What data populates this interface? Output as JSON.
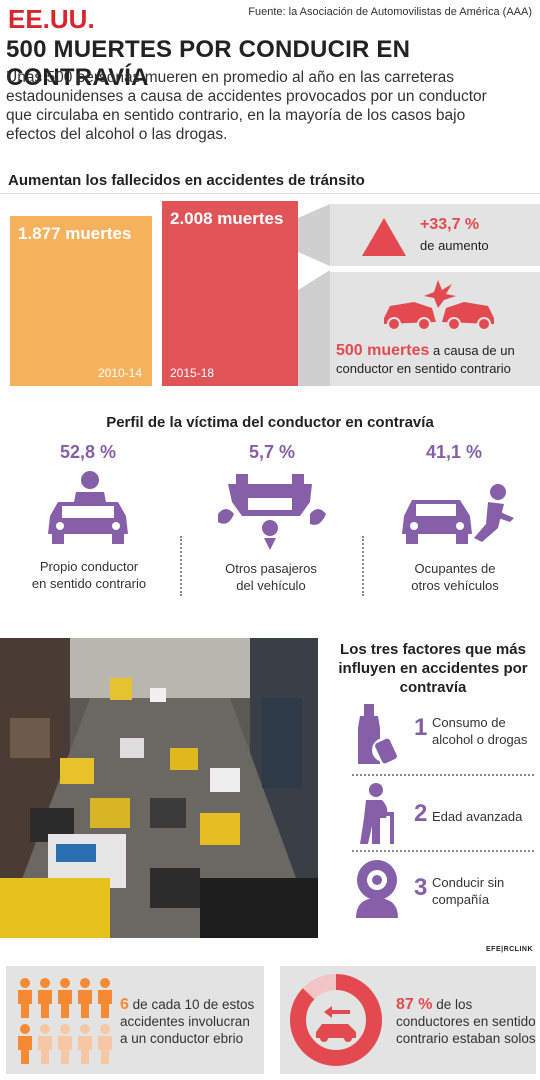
{
  "header": {
    "country_tag": "EE.UU.",
    "source": "Fuente: la Asociación de Automovilistas de América (AAA)",
    "title": "500 MUERTES POR CONDUCIR EN CONTRAVÍA",
    "lead": "Unas 500 personas mueren en promedio al año en las carreteras estadounidenses a causa de accidentes provocados por un conductor que circulaba en sentido contrario, en la mayoría de los casos bajo efectos del alcohol o las drogas."
  },
  "fatalities": {
    "section_title": "Aumentan los fallecidos en accidentes de tránsito",
    "bars": [
      {
        "value_label": "1.877 muertes",
        "period": "2010-14",
        "value": 1877,
        "color": "#f6b15c"
      },
      {
        "value_label": "2.008 muertes",
        "period": "2015-18",
        "value": 2008,
        "color": "#e05357"
      }
    ],
    "increase_pct": "+33,7 %",
    "increase_label": "de aumento",
    "deaths_highlight": "500 muertes",
    "deaths_text_1": "a causa de un",
    "deaths_text_2": "conductor en sentido contrario"
  },
  "profile": {
    "section_title": "Perfil de la víctima del conductor en contravía",
    "items": [
      {
        "pct": "52,8 %",
        "label_1": "Propio conductor",
        "label_2": "en sentido contrario",
        "icon": "driver-crash-icon"
      },
      {
        "pct": "5,7 %",
        "label_1": "Otros pasajeros",
        "label_2": "del vehículo",
        "icon": "overturned-car-icon"
      },
      {
        "pct": "41,1 %",
        "label_1": "Ocupantes de",
        "label_2": "otros vehículos",
        "icon": "pedestrian-hit-icon"
      }
    ],
    "accent": "#8560a8"
  },
  "factors": {
    "title_1": "Los tres factores que más",
    "title_2": "influyen en accidentes por",
    "title_3": "contravía",
    "items": [
      {
        "num": "1",
        "text_1": "Consumo de",
        "text_2": "alcohol o drogas",
        "icon": "bottle-icon"
      },
      {
        "num": "2",
        "text_1": "Edad avanzada",
        "text_2": "",
        "icon": "elderly-person-icon"
      },
      {
        "num": "3",
        "text_1": "Conducir sin",
        "text_2": "compañía",
        "icon": "solo-driver-icon"
      }
    ]
  },
  "logo": "EFE|RCLINK",
  "stats": {
    "drunk_num": "6",
    "drunk_text_1": "de cada 10 de estos",
    "drunk_text_2": "accidentes involucran",
    "drunk_text_3": "a un conductor ebrio",
    "drunk_ratio": 0.6,
    "solo_pct": "87 %",
    "solo_text_1": "de los",
    "solo_text_2": "conductores en sentido",
    "solo_text_3": "contrario estaban solos",
    "solo_ratio": 0.87
  }
}
